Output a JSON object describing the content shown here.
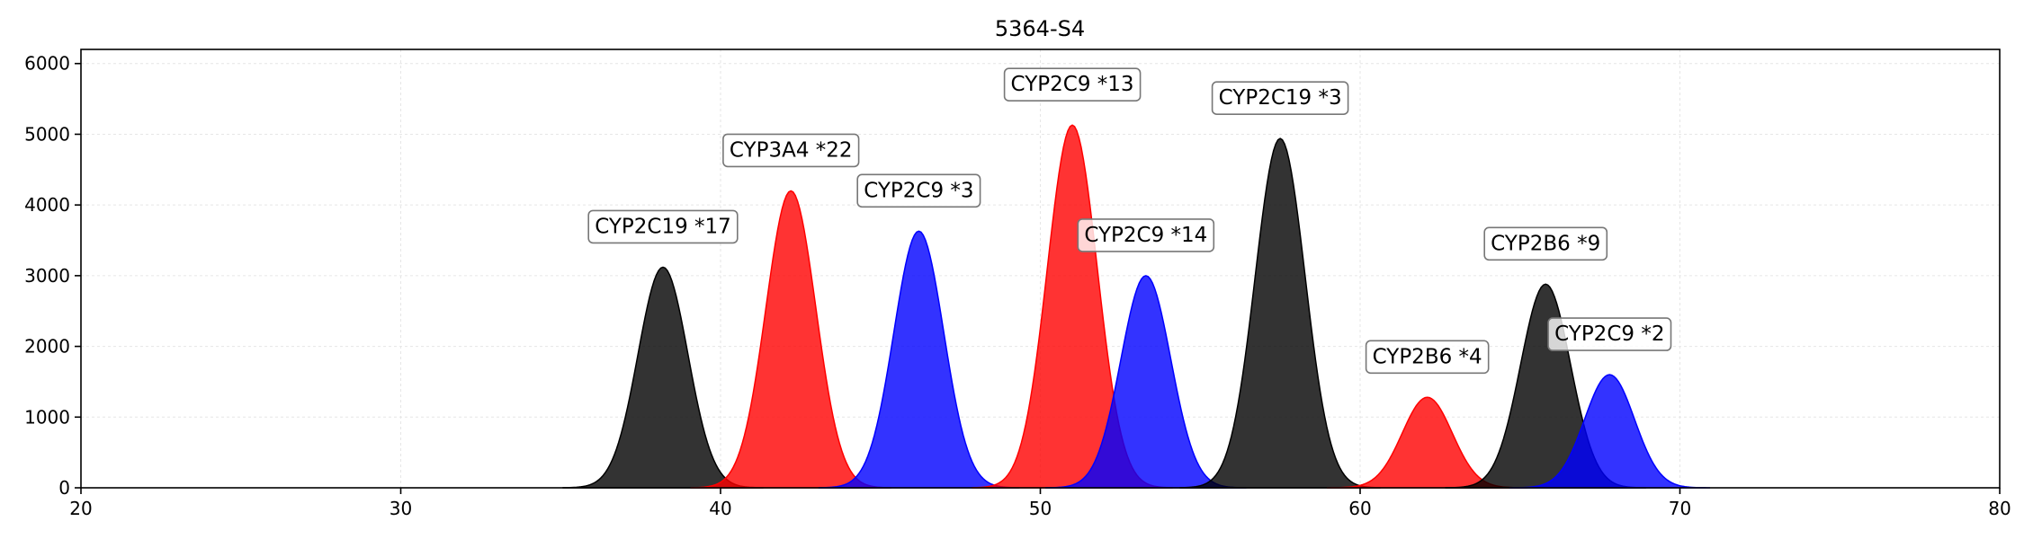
{
  "chart_data": {
    "type": "area",
    "title": "5364-S4",
    "xlabel": "",
    "ylabel": "",
    "xlim": [
      20,
      80
    ],
    "ylim": [
      0,
      6200
    ],
    "xticks": [
      20,
      30,
      40,
      50,
      60,
      70,
      80
    ],
    "yticks": [
      0,
      1000,
      2000,
      3000,
      4000,
      5000,
      6000
    ],
    "grid": true,
    "series": [
      {
        "name": "CYP2C19 *17",
        "center": 38.2,
        "height": 3120,
        "sigma": 0.78,
        "color": "#000000"
      },
      {
        "name": "CYP3A4 *22",
        "center": 42.2,
        "height": 4200,
        "sigma": 0.78,
        "color": "#ff0000"
      },
      {
        "name": "CYP2C9 *3",
        "center": 46.2,
        "height": 3630,
        "sigma": 0.78,
        "color": "#0000ff"
      },
      {
        "name": "CYP2C9 *13",
        "center": 51.0,
        "height": 5130,
        "sigma": 0.78,
        "color": "#ff0000"
      },
      {
        "name": "CYP2C9 *14",
        "center": 53.3,
        "height": 3000,
        "sigma": 0.78,
        "color": "#0000ff"
      },
      {
        "name": "CYP2C19 *3",
        "center": 57.5,
        "height": 4940,
        "sigma": 0.78,
        "color": "#000000"
      },
      {
        "name": "CYP2B6 *4",
        "center": 62.1,
        "height": 1280,
        "sigma": 0.78,
        "color": "#ff0000"
      },
      {
        "name": "CYP2B6 *9",
        "center": 65.8,
        "height": 2880,
        "sigma": 0.78,
        "color": "#000000"
      },
      {
        "name": "CYP2C9 *2",
        "center": 67.8,
        "height": 1600,
        "sigma": 0.78,
        "color": "#0000ff"
      }
    ]
  }
}
